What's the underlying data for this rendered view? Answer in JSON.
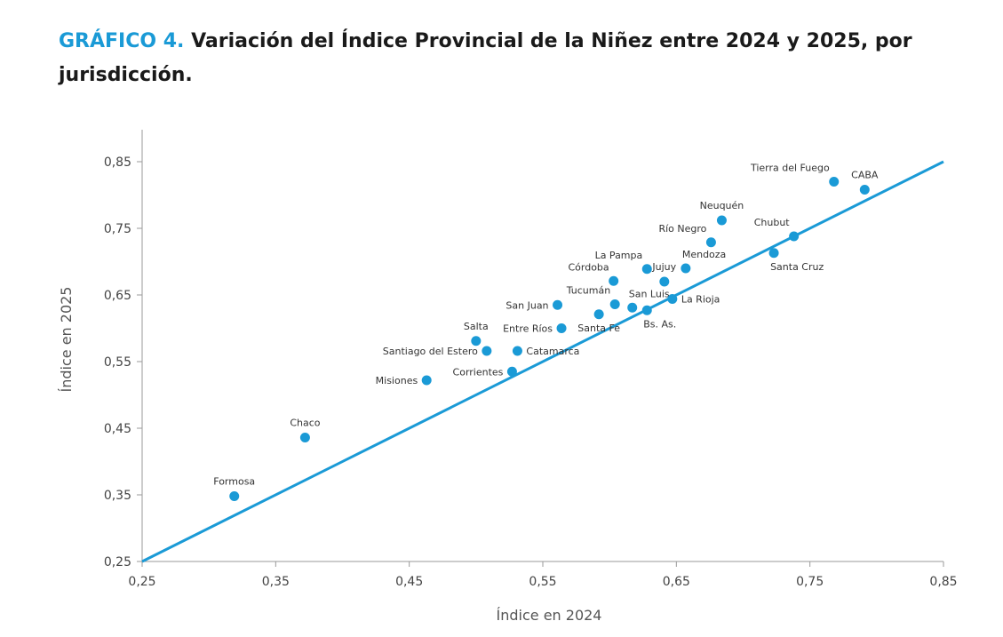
{
  "title": {
    "number": "GRÁFICO 4.",
    "text": " Variación del Índice Provincial de la Niñez entre 2024 y 2025, por jurisdicción."
  },
  "chart_data": {
    "type": "scatter",
    "title": "Variación del Índice Provincial de la Niñez entre 2024 y 2025, por jurisdicción.",
    "xlabel": "Índice en 2024",
    "ylabel": "Índice en 2025",
    "xlim": [
      0.25,
      0.85
    ],
    "ylim": [
      0.25,
      0.85
    ],
    "xticks": [
      "0,25",
      "0,35",
      "0,45",
      "0,55",
      "0,65",
      "0,75",
      "0,85"
    ],
    "yticks": [
      "0,25",
      "0,35",
      "0,45",
      "0,55",
      "0,65",
      "0,75",
      "0,85"
    ],
    "reference_line": {
      "from": [
        0.25,
        0.25
      ],
      "to": [
        0.85,
        0.85
      ]
    },
    "color": "#1a9ad6",
    "points": [
      {
        "name": "Formosa",
        "x": 0.319,
        "y": 0.348,
        "anchor": "above"
      },
      {
        "name": "Chaco",
        "x": 0.372,
        "y": 0.436,
        "anchor": "above"
      },
      {
        "name": "Misiones",
        "x": 0.463,
        "y": 0.522,
        "anchor": "left"
      },
      {
        "name": "Corrientes",
        "x": 0.527,
        "y": 0.535,
        "anchor": "left"
      },
      {
        "name": "Santiago del Estero",
        "x": 0.508,
        "y": 0.566,
        "anchor": "left"
      },
      {
        "name": "Catamarca",
        "x": 0.531,
        "y": 0.566,
        "anchor": "right"
      },
      {
        "name": "Salta",
        "x": 0.5,
        "y": 0.581,
        "anchor": "above"
      },
      {
        "name": "Entre Ríos",
        "x": 0.564,
        "y": 0.6,
        "anchor": "left"
      },
      {
        "name": "San Juan",
        "x": 0.561,
        "y": 0.635,
        "anchor": "left"
      },
      {
        "name": "Santa Fe",
        "x": 0.592,
        "y": 0.621,
        "anchor": "below"
      },
      {
        "name": "Tucumán",
        "x": 0.604,
        "y": 0.636,
        "anchor": "above-left"
      },
      {
        "name": "San Luis",
        "x": 0.617,
        "y": 0.631,
        "anchor": "above-right"
      },
      {
        "name": "Bs. As.",
        "x": 0.628,
        "y": 0.627,
        "anchor": "below-right"
      },
      {
        "name": "La Rioja",
        "x": 0.647,
        "y": 0.644,
        "anchor": "right"
      },
      {
        "name": "Córdoba",
        "x": 0.603,
        "y": 0.671,
        "anchor": "above-left"
      },
      {
        "name": "La Pampa",
        "x": 0.628,
        "y": 0.689,
        "anchor": "above-left"
      },
      {
        "name": "Jujuy",
        "x": 0.641,
        "y": 0.67,
        "anchor": "above"
      },
      {
        "name": "Mendoza",
        "x": 0.657,
        "y": 0.69,
        "anchor": "above-right"
      },
      {
        "name": "Río Negro",
        "x": 0.676,
        "y": 0.729,
        "anchor": "above-left"
      },
      {
        "name": "Neuquén",
        "x": 0.684,
        "y": 0.762,
        "anchor": "above"
      },
      {
        "name": "Santa Cruz",
        "x": 0.723,
        "y": 0.713,
        "anchor": "below-right"
      },
      {
        "name": "Chubut",
        "x": 0.738,
        "y": 0.738,
        "anchor": "above-left"
      },
      {
        "name": "Tierra del Fuego",
        "x": 0.768,
        "y": 0.82,
        "anchor": "above-left"
      },
      {
        "name": "CABA",
        "x": 0.791,
        "y": 0.808,
        "anchor": "above"
      }
    ]
  }
}
